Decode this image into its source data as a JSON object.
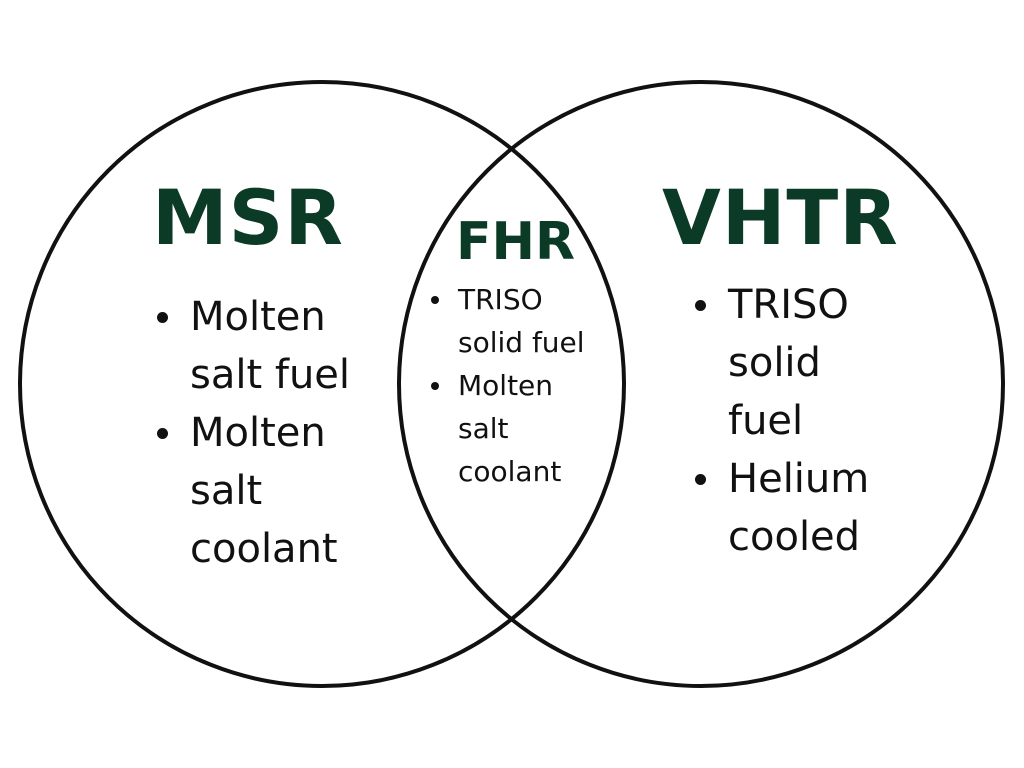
{
  "diagram": {
    "type": "venn",
    "colors": {
      "title": "#0b3b26",
      "text": "#111111",
      "outline": "#111111",
      "background": "#ffffff"
    },
    "sets": [
      {
        "id": "left",
        "title": "MSR",
        "items": [
          "Molten salt fuel",
          "Molten salt coolant"
        ]
      },
      {
        "id": "intersection",
        "title": "FHR",
        "items": [
          "TRISO solid fuel",
          "Molten salt coolant"
        ]
      },
      {
        "id": "right",
        "title": "VHTR",
        "items": [
          "TRISO solid fuel",
          "Helium cooled"
        ]
      }
    ]
  }
}
